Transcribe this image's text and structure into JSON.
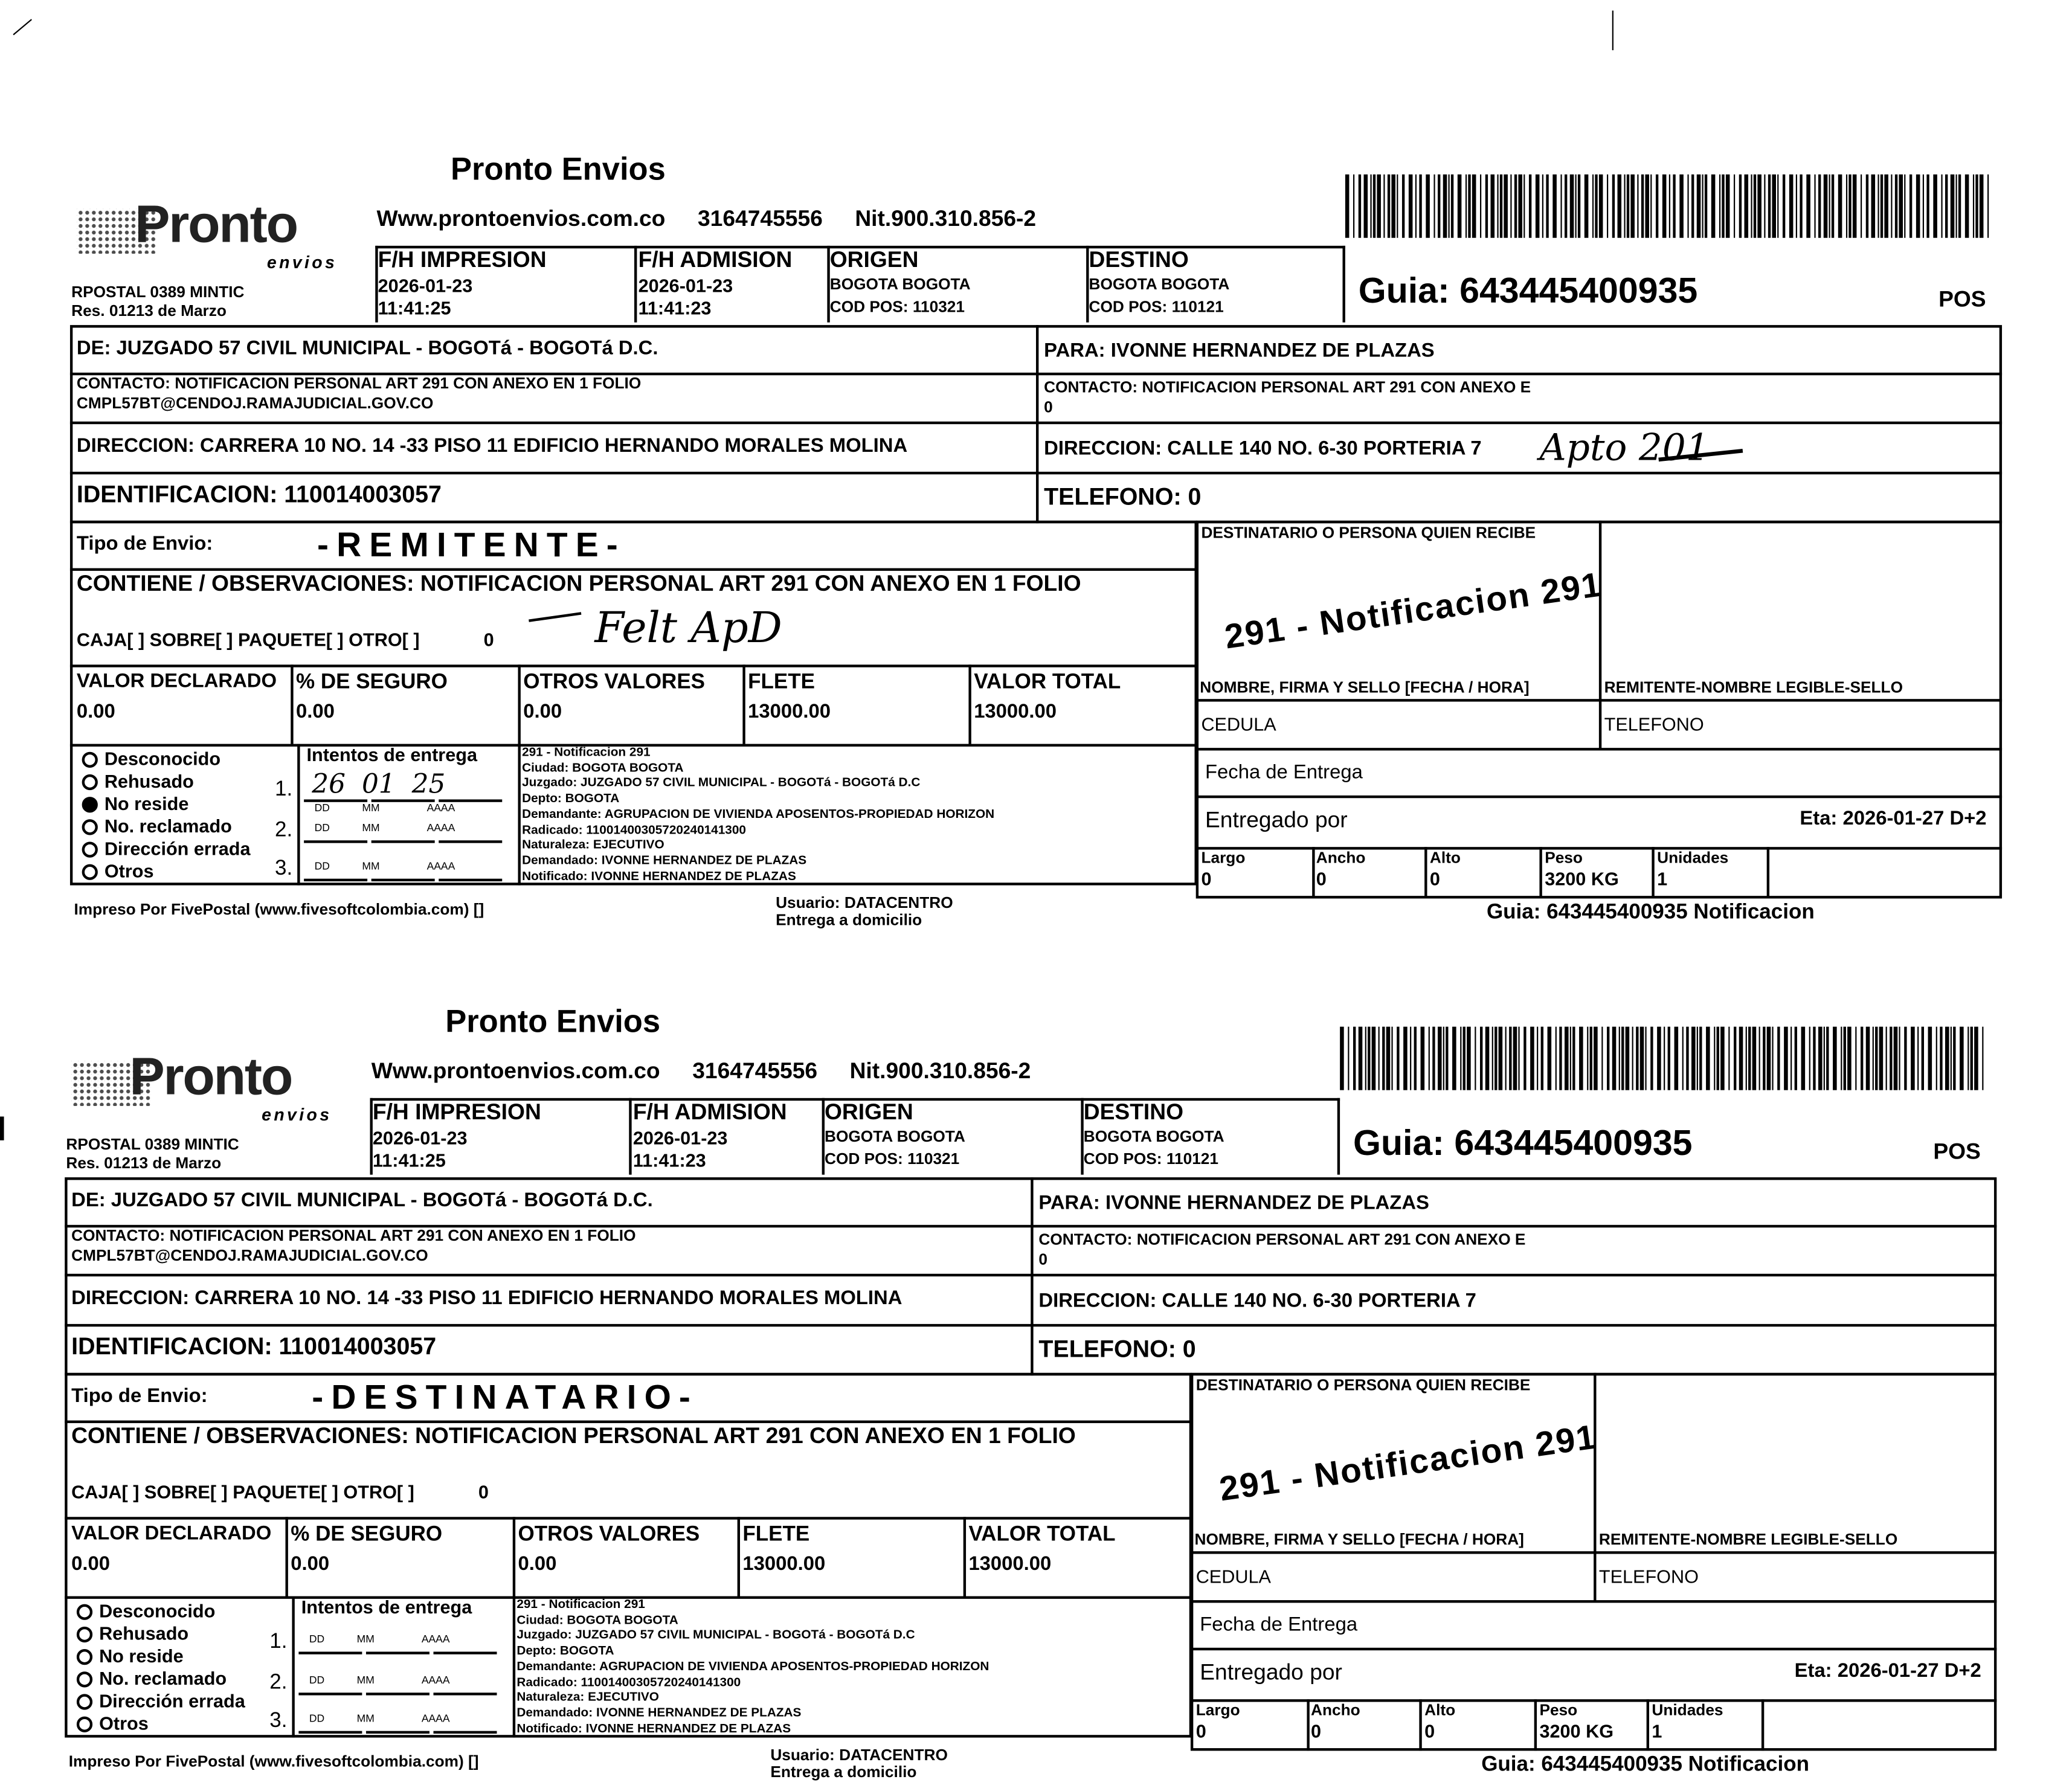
{
  "slip": {
    "brand_title": "Pronto Envios",
    "logo_text": "Pronto",
    "logo_sub": "envios",
    "website": "Www.prontoenvios.com.co",
    "phone": "3164745556",
    "nit": "Nit.900.310.856-2",
    "license_line1": "RPOSTAL 0389 MINTIC",
    "license_line2": "Res. 01213 de Marzo",
    "fh_impresion_label": "F/H IMPRESION",
    "fh_impresion_date": "2026-01-23",
    "fh_impresion_time": "11:41:25",
    "fh_admision_label": "F/H ADMISION",
    "fh_admision_date": "2026-01-23",
    "fh_admision_time": "11:41:23",
    "origen_label": "ORIGEN",
    "origen_city": "BOGOTA BOGOTA",
    "origen_cod": "COD POS: 110321",
    "destino_label": "DESTINO",
    "destino_city": "BOGOTA BOGOTA",
    "destino_cod": "COD POS: 110121",
    "guia": "Guia: 643445400935",
    "pos": "POS",
    "de": "DE: JUZGADO 57 CIVIL MUNICIPAL - BOGOTá - BOGOTá D.C.",
    "para": "PARA: IVONNE HERNANDEZ DE PLAZAS",
    "contacto_rem_1": "CONTACTO: NOTIFICACION PERSONAL ART 291 CON ANEXO EN 1 FOLIO",
    "contacto_rem_2": "CMPL57BT@CENDOJ.RAMAJUDICIAL.GOV.CO",
    "contacto_dest_1": "CONTACTO: NOTIFICACION PERSONAL ART 291 CON ANEXO E",
    "contacto_dest_2": "0",
    "direccion_rem": "DIRECCION: CARRERA 10 NO. 14 -33 PISO 11 EDIFICIO HERNANDO MORALES MOLINA",
    "direccion_dest": "DIRECCION: CALLE 140 NO. 6-30 PORTERIA 7",
    "identificacion": "IDENTIFICACION: 110014003057",
    "telefono": "TELEFONO: 0",
    "tipo_envio": "Tipo de Envio:",
    "contiene": "CONTIENE / OBSERVACIONES: NOTIFICACION PERSONAL ART 291 CON ANEXO EN 1 FOLIO",
    "empaque": "CAJA[ ] SOBRE[ ] PAQUETE[ ] OTRO[ ]",
    "empaque_count": "0",
    "valores": [
      {
        "label": "VALOR DECLARADO",
        "value": "0.00"
      },
      {
        "label": "% DE SEGURO",
        "value": "0.00"
      },
      {
        "label": "OTROS VALORES",
        "value": "0.00"
      },
      {
        "label": "FLETE",
        "value": "13000.00"
      },
      {
        "label": "VALOR TOTAL",
        "value": "13000.00"
      }
    ],
    "destinatario_label": "DESTINATARIO O PERSONA QUIEN RECIBE",
    "firma_label": "NOMBRE, FIRMA Y SELLO   [FECHA / HORA]",
    "remitente_sello_label": "REMITENTE-NOMBRE LEGIBLE-SELLO",
    "cedula_label": "CEDULA",
    "telefono_label": "TELEFONO",
    "fecha_entrega_label": "Fecha de Entrega",
    "entregado_por_label": "Entregado por",
    "eta": "Eta: 2026-01-27 D+2",
    "dims": [
      {
        "label": "Largo",
        "value": "0"
      },
      {
        "label": "Ancho",
        "value": "0"
      },
      {
        "label": "Alto",
        "value": "0"
      },
      {
        "label": "Peso",
        "value": "3200 KG"
      },
      {
        "label": "Unidades",
        "value": "1"
      },
      {
        "label": "",
        "value": ""
      }
    ],
    "motivos": [
      "Desconocido",
      "Rehusado",
      "No reside",
      "No. reclamado",
      "Dirección errada",
      "Otros"
    ],
    "intentos_label": "Intentos de entrega",
    "intentos": [
      "1.",
      "2.",
      "3."
    ],
    "fecha_placeholders": [
      "DD",
      "MM",
      "AAAA"
    ],
    "info_lines": [
      "291 - Notificacion 291",
      "Ciudad: BOGOTA BOGOTA",
      "Juzgado: JUZGADO 57 CIVIL MUNICIPAL - BOGOTá - BOGOTá D.C",
      "Depto: BOGOTA",
      "Demandante: AGRUPACION DE VIVIENDA APOSENTOS-PROPIEDAD HORIZON",
      "Radicado: 11001400305720240141300",
      "Naturaleza: EJECUTIVO",
      "Demandado: IVONNE HERNANDEZ DE PLAZAS",
      "Notificado: IVONNE HERNANDEZ DE PLAZAS"
    ],
    "impreso": "Impreso Por FivePostal (www.fivesoftcolombia.com) []",
    "usuario": "Usuario: DATACENTRO",
    "entrega": "Entrega a domicilio",
    "guia_footer": "Guia: 643445400935 Notificacion",
    "watermark_notif": "291 - Notificacion 291"
  },
  "copies": [
    {
      "stamp": "-REMITENTE-",
      "selected_motivo": 2,
      "handwriting": {
        "direccion_note": "Apto 201",
        "observaciones_note": "Felt ApD",
        "intento_1": "26 01 25"
      }
    },
    {
      "stamp": "-DESTINATARIO-",
      "selected_motivo": -1,
      "handwriting": {}
    }
  ]
}
